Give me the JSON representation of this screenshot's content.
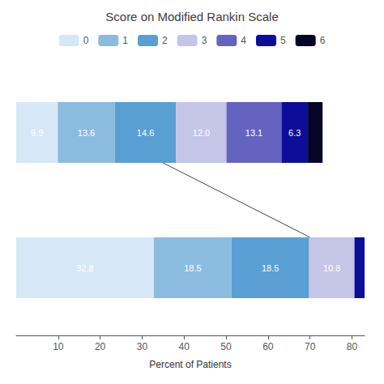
{
  "chart_data": {
    "type": "bar",
    "orientation": "horizontal",
    "stacked": true,
    "title": "Score on Modified Rankin Scale",
    "xlabel": "Percent of Patients",
    "categories": [
      null,
      null
    ],
    "series": [
      {
        "name": "0",
        "color": "#d6e8f7",
        "values": [
          9.9,
          32.8
        ],
        "value_labels": [
          "9.9",
          "32.8"
        ]
      },
      {
        "name": "1",
        "color": "#8bbcdf",
        "values": [
          13.6,
          18.5
        ],
        "value_labels": [
          "13.6",
          "18.5"
        ]
      },
      {
        "name": "2",
        "color": "#5a9fd4",
        "values": [
          14.6,
          18.5
        ],
        "value_labels": [
          "14.6",
          "18.5"
        ]
      },
      {
        "name": "3",
        "color": "#c5c5e8",
        "values": [
          12.0,
          10.8
        ],
        "value_labels": [
          "12.0",
          "10.8"
        ]
      },
      {
        "name": "4",
        "color": "#6464c0",
        "values": [
          13.1,
          null
        ],
        "value_labels": [
          "13.1",
          null
        ]
      },
      {
        "name": "5",
        "color": "#0d0d9a",
        "values": [
          6.3,
          2.4
        ],
        "value_labels": [
          "6.3",
          null
        ]
      },
      {
        "name": "6",
        "color": "#050528",
        "values": [
          3.5,
          null
        ],
        "value_labels": [
          null,
          null
        ]
      }
    ],
    "xlim": [
      0,
      83
    ],
    "xticks": [
      10,
      20,
      30,
      40,
      50,
      60,
      70,
      80
    ],
    "data_labels": true,
    "grid": false,
    "legend": "top",
    "tick_labels": "x",
    "connector_x": [
      35.0,
      70.0
    ]
  }
}
